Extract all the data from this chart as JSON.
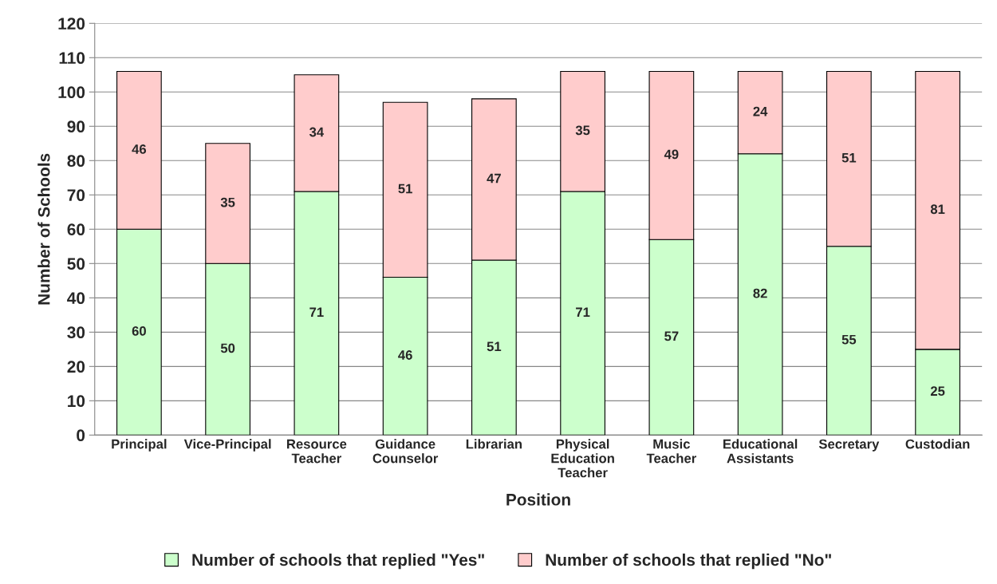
{
  "chart_data": {
    "type": "bar",
    "stacked": true,
    "xlabel": "Position",
    "ylabel": "Number of Schools",
    "categories": [
      "Principal",
      "Vice-Principal",
      "Resource Teacher",
      "Guidance Counselor",
      "Librarian",
      "Physical Education Teacher",
      "Music Teacher",
      "Educational Assistants",
      "Secretary",
      "Custodian"
    ],
    "series": [
      {
        "name": "Number of schools that replied \"Yes\"",
        "color": "#ccffcc",
        "values": [
          60,
          50,
          71,
          46,
          51,
          71,
          57,
          82,
          55,
          25
        ]
      },
      {
        "name": "Number of schools that replied \"No\"",
        "color": "#ffcccc",
        "values": [
          46,
          35,
          34,
          51,
          47,
          35,
          49,
          24,
          51,
          81
        ]
      }
    ],
    "ylim": [
      0,
      120
    ],
    "yticks": [
      0,
      10,
      20,
      30,
      40,
      50,
      60,
      70,
      80,
      90,
      100,
      110,
      120
    ],
    "grid": "y",
    "legend": "bottom",
    "data_labels": true
  }
}
